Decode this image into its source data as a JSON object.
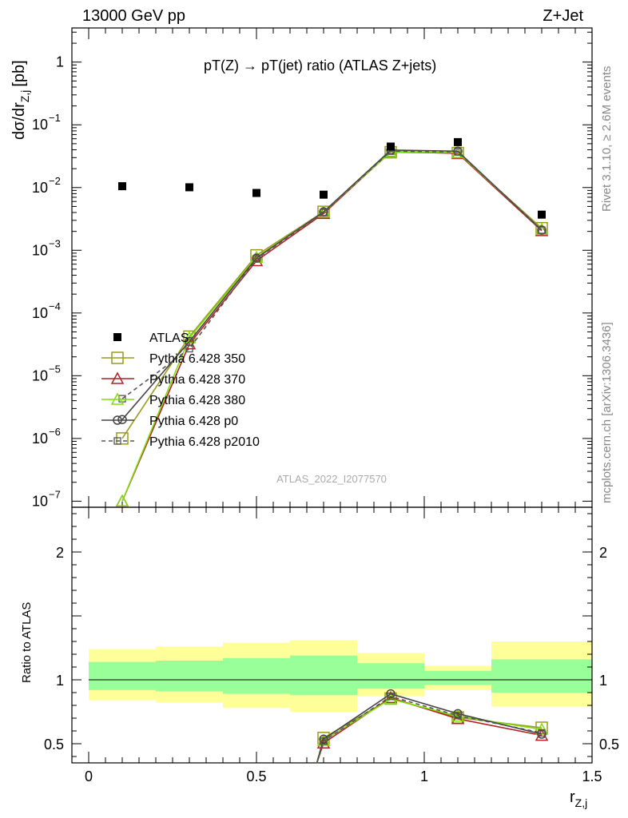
{
  "header": {
    "left": "13000 GeV pp",
    "right": "Z+Jet"
  },
  "side": {
    "rivet": "Rivet 3.1.10, ≥ 2.6M events",
    "mcplots": "mcplots.cern.ch [arXiv:1306.3436]"
  },
  "chart_data": {
    "type": "line",
    "title_left": "pT(Z) → pT(jet) ratio (ATLAS Z+jets)",
    "watermark": "ATLAS_2022_I2077570",
    "main": {
      "ylabel": "dσ/dr",
      "ylabel_sub": "Z,j",
      "ylabel_unit": "[pb]",
      "yscale": "log",
      "ylim": [
        8e-08,
        3.5
      ],
      "y_ticks": [
        1e-07,
        1e-06,
        1e-05,
        0.0001,
        0.001,
        0.01,
        0.1,
        1
      ],
      "y_tick_labels": [
        {
          "base": "10",
          "exp": "−7"
        },
        {
          "base": "10",
          "exp": "−6"
        },
        {
          "base": "10",
          "exp": "−5"
        },
        {
          "base": "10",
          "exp": "−4"
        },
        {
          "base": "10",
          "exp": "−3"
        },
        {
          "base": "10",
          "exp": "−2"
        },
        {
          "base": "10",
          "exp": "−1"
        },
        {
          "base": "1",
          "exp": ""
        }
      ]
    },
    "ratio": {
      "ylabel": "Ratio to ATLAS",
      "ylim": [
        0.35,
        2.35
      ],
      "y_ticks": [
        0.5,
        1,
        2
      ],
      "y_tick_labels": [
        "0.5",
        "1",
        "2"
      ]
    },
    "xlabel": "r",
    "xlabel_sub": "Z,j",
    "xlim": [
      -0.05,
      1.5
    ],
    "x_ticks": [
      0,
      0.5,
      1,
      1.5
    ],
    "x_tick_labels": [
      "0",
      "0.5",
      "1",
      "1.5"
    ],
    "x": [
      0.1,
      0.3,
      0.5,
      0.7,
      0.9,
      1.1,
      1.35
    ],
    "bins": [
      [
        0,
        0.2
      ],
      [
        0.2,
        0.4
      ],
      [
        0.4,
        0.6
      ],
      [
        0.6,
        0.8
      ],
      [
        0.8,
        1.0
      ],
      [
        1.0,
        1.2
      ],
      [
        1.2,
        1.5
      ]
    ],
    "data": {
      "name": "ATLAS",
      "values": [
        0.0105,
        0.0101,
        0.0082,
        0.0077,
        0.045,
        0.053,
        0.0037
      ],
      "color": "#000000"
    },
    "ratio_bands": {
      "outer_color": "#ffff99",
      "inner_color": "#99ff99",
      "outer": [
        [
          0.84,
          1.24
        ],
        [
          0.82,
          1.26
        ],
        [
          0.78,
          1.29
        ],
        [
          0.75,
          1.31
        ],
        [
          0.87,
          1.21
        ],
        [
          0.92,
          1.11
        ],
        [
          0.79,
          1.3
        ]
      ],
      "inner": [
        [
          0.92,
          1.14
        ],
        [
          0.91,
          1.15
        ],
        [
          0.89,
          1.17
        ],
        [
          0.88,
          1.19
        ],
        [
          0.93,
          1.13
        ],
        [
          0.96,
          1.07
        ],
        [
          0.9,
          1.16
        ]
      ]
    },
    "series": [
      {
        "name": "Pythia 6.428 350",
        "color": "#9a9a1e",
        "marker": "square",
        "dash": "",
        "values": [
          1e-06,
          4.2e-05,
          0.00083,
          0.0041,
          0.0365,
          0.0355,
          0.00225
        ]
      },
      {
        "name": "Pythia 6.428 370",
        "color": "#b22222",
        "marker": "triangle",
        "dash": "",
        "values": [
          1e-07,
          3.2e-05,
          0.00068,
          0.00385,
          0.0375,
          0.035,
          0.00205
        ]
      },
      {
        "name": "Pythia 6.428 380",
        "color": "#7fdd0c",
        "marker": "triangle",
        "dash": "",
        "values": [
          1e-07,
          4e-05,
          0.00077,
          0.00405,
          0.037,
          0.036,
          0.00215
        ]
      },
      {
        "name": "Pythia 6.428 p0",
        "color": "#444444",
        "marker": "circle",
        "dash": "",
        "values": [
          2e-06,
          3.5e-05,
          0.00075,
          0.0041,
          0.0395,
          0.038,
          0.0021
        ]
      },
      {
        "name": "Pythia 6.428 p2010",
        "color": "#555555",
        "marker": "square-small",
        "dash": "5,4",
        "values": [
          4.3e-06,
          2.7e-05,
          0.00073,
          0.004,
          0.038,
          0.037,
          0.0021
        ]
      }
    ],
    "ratio_series": [
      {
        "name": "Pythia 6.428 350",
        "values": [
          null,
          null,
          null,
          0.545,
          0.853,
          0.705,
          0.625
        ]
      },
      {
        "name": "Pythia 6.428 370",
        "values": [
          null,
          null,
          null,
          0.505,
          0.86,
          0.695,
          0.565
        ]
      },
      {
        "name": "Pythia 6.428 380",
        "values": [
          null,
          null,
          null,
          0.525,
          0.85,
          0.715,
          0.612
        ]
      },
      {
        "name": "Pythia 6.428 p0",
        "values": [
          null,
          null,
          null,
          0.535,
          0.89,
          0.735,
          0.575
        ]
      },
      {
        "name": "Pythia 6.428 p2010",
        "values": [
          null,
          null,
          null,
          0.52,
          0.87,
          0.72,
          0.585
        ]
      }
    ]
  }
}
